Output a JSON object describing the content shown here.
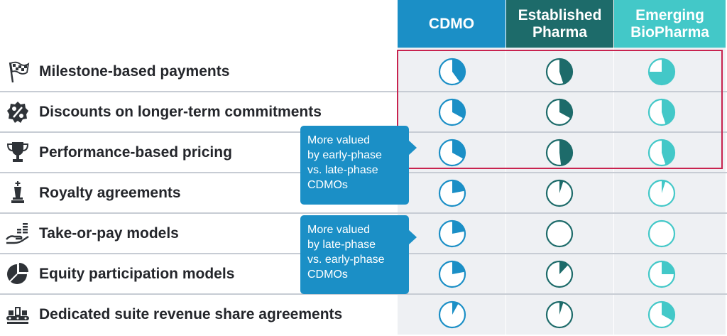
{
  "headers": {
    "cdmo": "CDMO",
    "established": [
      "Established",
      "Pharma"
    ],
    "emerging": [
      "Emerging",
      "BioPharma"
    ]
  },
  "colors": {
    "cdmo": "#1b8fc6",
    "established": "#1d6b6a",
    "emerging": "#43c8c8",
    "highlight": "#c8234f"
  },
  "rows": [
    {
      "label": "Milestone-based payments",
      "icon": "checkered-flag-icon",
      "fill": {
        "cdmo": 0.4,
        "established": 0.45,
        "emerging": 0.75
      }
    },
    {
      "label": "Discounts on longer-term commitments",
      "icon": "percent-badge-icon",
      "fill": {
        "cdmo": 0.33,
        "established": 0.33,
        "emerging": 0.45
      }
    },
    {
      "label": "Performance-based pricing",
      "icon": "trophy-icon",
      "fill": {
        "cdmo": 0.33,
        "established": 0.48,
        "emerging": 0.45
      }
    },
    {
      "label": "Royalty agreements",
      "icon": "chess-king-icon",
      "fill": {
        "cdmo": 0.22,
        "established": 0.05,
        "emerging": 0.05
      }
    },
    {
      "label": "Take-or-pay models",
      "icon": "hand-coins-icon",
      "fill": {
        "cdmo": 0.22,
        "established": 0,
        "emerging": 0
      }
    },
    {
      "label": "Equity participation models",
      "icon": "pie-chart-icon",
      "fill": {
        "cdmo": 0.22,
        "established": 0.12,
        "emerging": 0.25
      }
    },
    {
      "label": "Dedicated suite revenue share agreements",
      "icon": "production-line-icon",
      "fill": {
        "cdmo": 0.08,
        "established": 0.05,
        "emerging": 0.33
      }
    }
  ],
  "callouts": [
    {
      "lines": [
        "More valued",
        "by early-phase",
        "vs. late-phase",
        "CDMOs"
      ]
    },
    {
      "lines": [
        "More valued",
        "by late-phase",
        "vs. early-phase",
        "CDMOs"
      ]
    }
  ]
}
